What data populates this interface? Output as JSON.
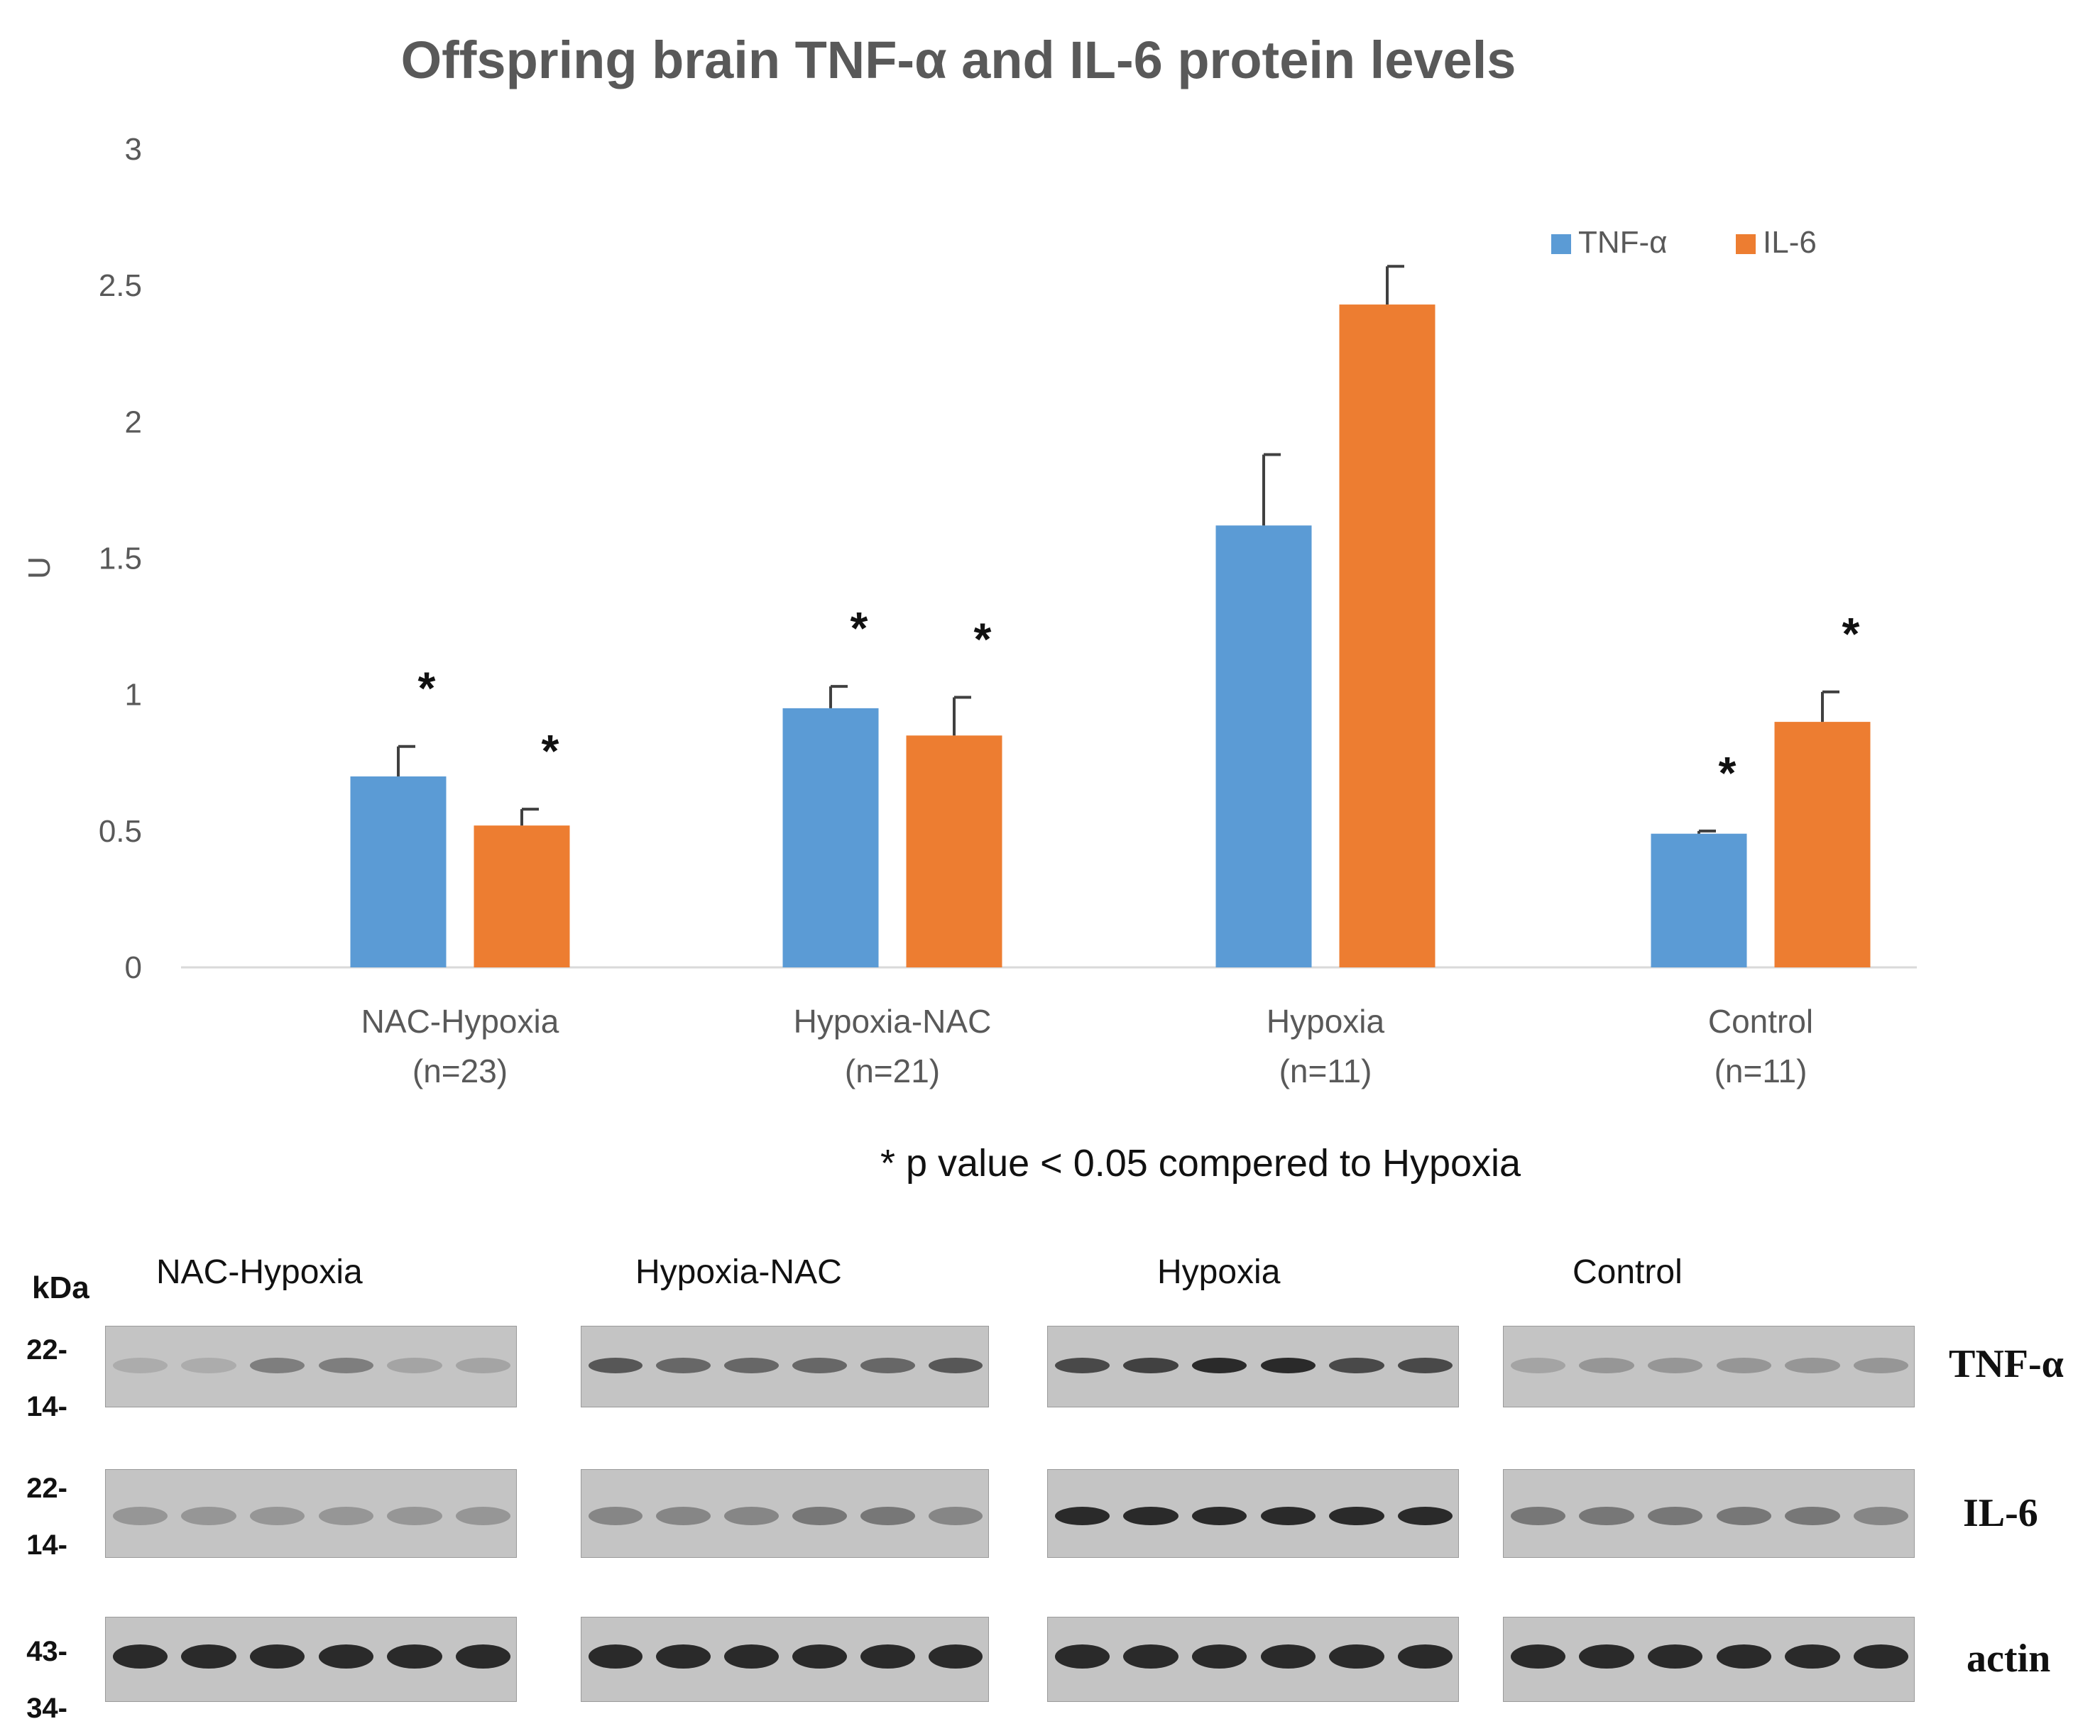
{
  "chart_data": {
    "type": "bar",
    "title": "Offspring brain TNF-α and IL-6 protein levels",
    "ylabel": "U",
    "xlabel": "",
    "ylim": [
      0,
      3
    ],
    "yticks": [
      "0",
      "0.5",
      "1",
      "1.5",
      "2",
      "2.5",
      "3"
    ],
    "categories": [
      {
        "name": "NAC-Hypoxia",
        "n": "(n=23)"
      },
      {
        "name": "Hypoxia-NAC",
        "n": "(n=21)"
      },
      {
        "name": "Hypoxia",
        "n": "(n=11)"
      },
      {
        "name": "Control",
        "n": "(n=11)"
      }
    ],
    "series": [
      {
        "name": "TNF-α",
        "color": "#5b9bd5",
        "values": [
          0.7,
          0.95,
          1.62,
          0.49
        ],
        "errors": [
          0.11,
          0.08,
          0.26,
          0.01
        ],
        "significant": [
          true,
          true,
          false,
          true
        ]
      },
      {
        "name": "IL-6",
        "color": "#ed7d31",
        "values": [
          0.52,
          0.85,
          2.43,
          0.9
        ],
        "errors": [
          0.06,
          0.14,
          0.14,
          0.11
        ],
        "significant": [
          true,
          true,
          false,
          true
        ]
      }
    ],
    "significance_marker": "*",
    "legend_position": "top-right",
    "footnote": "* p value < 0.05 compered to Hypoxia"
  },
  "blot": {
    "units_label": "kDa",
    "group_labels": [
      "NAC-Hypoxia",
      "Hypoxia-NAC",
      "Hypoxia",
      "Control"
    ],
    "rows": [
      {
        "protein": "TNF-α",
        "markers": [
          "22-",
          "14-"
        ]
      },
      {
        "protein": "IL-6",
        "markers": [
          "22-",
          "14-"
        ]
      },
      {
        "protein": "actin",
        "markers": [
          "43-",
          "34-"
        ]
      }
    ]
  }
}
